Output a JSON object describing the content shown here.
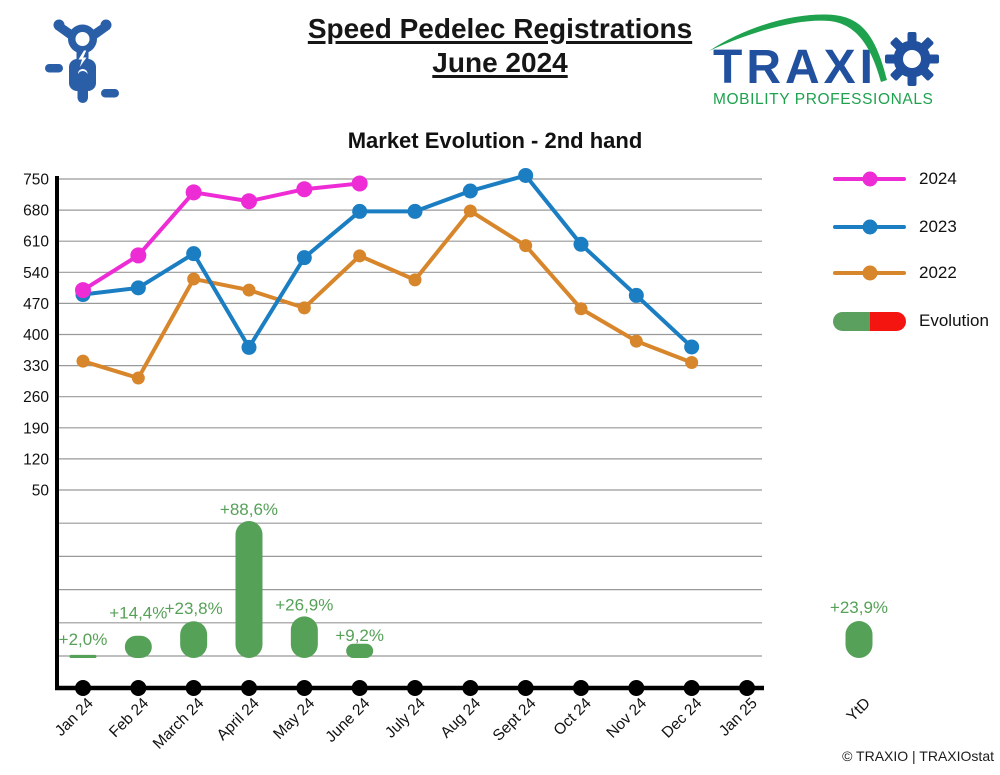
{
  "header": {
    "title_line1": "Speed Pedelec Registrations",
    "title_line2": "June 2024",
    "logo": {
      "brand_wordmark": "TRAXI",
      "tagline": "MOBILITY PROFESSIONALS"
    }
  },
  "chart_data": {
    "type": "line+bar",
    "title": "Market Evolution - 2nd hand",
    "categories": [
      "Jan 24",
      "Feb 24",
      "March 24",
      "April 24",
      "May 24",
      "June 24",
      "July 24",
      "Aug 24",
      "Sept 24",
      "Oct 24",
      "Nov 24",
      "Dec 24",
      "Jan 25"
    ],
    "y_ticks": [
      750,
      680,
      610,
      540,
      470,
      400,
      330,
      260,
      190,
      120,
      50
    ],
    "ylim": [
      50,
      750
    ],
    "grid": true,
    "legend_position": "right",
    "series": [
      {
        "name": "2024",
        "type": "line",
        "color": "#ee2cd6",
        "values": [
          500,
          578,
          720,
          700,
          727,
          740
        ]
      },
      {
        "name": "2023",
        "type": "line",
        "color": "#1b7ec2",
        "values": [
          490,
          505,
          582,
          371,
          573,
          677,
          677,
          723,
          758,
          603,
          488,
          372
        ]
      },
      {
        "name": "2022",
        "type": "line",
        "color": "#d8862b",
        "values": [
          340,
          302,
          525,
          500,
          460,
          577,
          523,
          678,
          600,
          458,
          385,
          337
        ]
      }
    ],
    "evolution": {
      "name": "Evolution",
      "type": "bar",
      "unit": "percent",
      "color_positive": "#56a158",
      "color_negative": "#f01414",
      "values": [
        2.0,
        14.4,
        23.8,
        88.6,
        26.9,
        9.2
      ],
      "labels": [
        "+2,0%",
        "+14,4%",
        "+23,8%",
        "+88,6%",
        "+26,9%",
        "+9,2%"
      ],
      "ytd_value": 23.9,
      "ytd_label": "+23,9%",
      "ytd_axis_label": "YtD"
    }
  },
  "legend": {
    "items": [
      {
        "label": "2024",
        "type": "line",
        "color": "#ee2cd6"
      },
      {
        "label": "2023",
        "type": "line",
        "color": "#1b7ec2"
      },
      {
        "label": "2022",
        "type": "line",
        "color": "#d8862b"
      },
      {
        "label": "Evolution",
        "type": "pill",
        "color_left": "#5ba05e",
        "color_right": "#f51510"
      }
    ]
  },
  "footer": {
    "credit": "© TRAXIO | TRAXIOstat"
  },
  "colors": {
    "logo_blue": "#2a5fa8",
    "traxio_blue": "#21519e",
    "traxio_green": "#1ea24e",
    "grid": "#999999",
    "axis": "#000000"
  }
}
